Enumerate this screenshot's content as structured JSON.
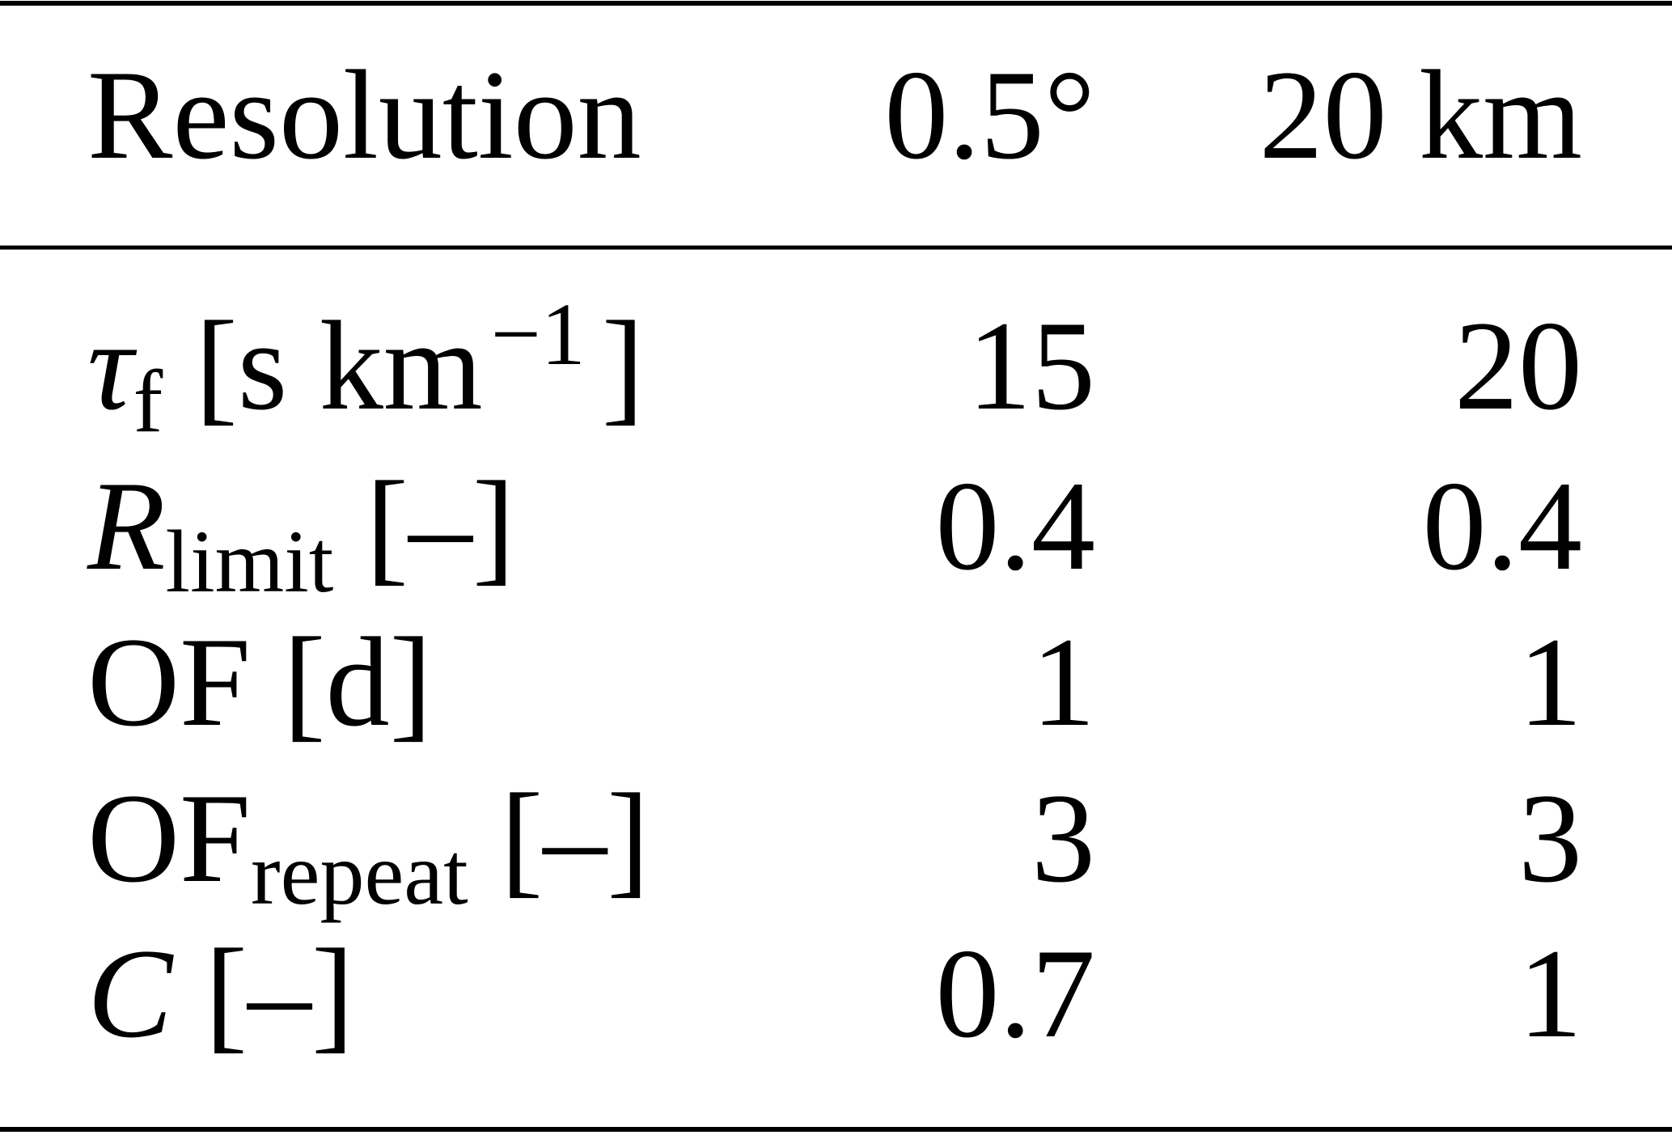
{
  "table": {
    "header": [
      "Resolution",
      "0.5°",
      "20 km"
    ],
    "rows": [
      {
        "symbol": "τ",
        "subscript": "f",
        "unit": "[s km",
        "unit_exponent": "−1",
        "unit_end": "]",
        "values": [
          15,
          20
        ]
      },
      {
        "symbol": "R",
        "subscript": "limit",
        "unit": "[–]",
        "values": [
          0.4,
          0.4
        ]
      },
      {
        "symbol": "OF",
        "unit": "[d]",
        "values": [
          1,
          1
        ]
      },
      {
        "symbol": "OF",
        "subscript": "repeat",
        "unit": "[–]",
        "values": [
          3,
          3
        ]
      },
      {
        "symbol": "C",
        "unit": "[–]",
        "values": [
          0.7,
          1
        ]
      }
    ]
  }
}
